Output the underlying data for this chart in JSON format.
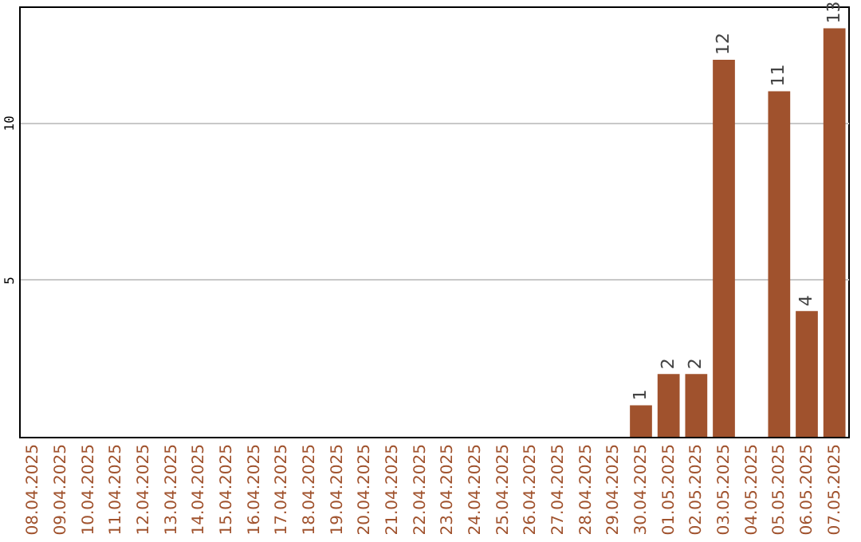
{
  "chart_data": {
    "type": "bar",
    "categories": [
      "08.04.2025",
      "09.04.2025",
      "10.04.2025",
      "11.04.2025",
      "12.04.2025",
      "13.04.2025",
      "14.04.2025",
      "15.04.2025",
      "16.04.2025",
      "17.04.2025",
      "18.04.2025",
      "19.04.2025",
      "20.04.2025",
      "21.04.2025",
      "22.04.2025",
      "23.04.2025",
      "24.04.2025",
      "25.04.2025",
      "26.04.2025",
      "27.04.2025",
      "28.04.2025",
      "29.04.2025",
      "30.04.2025",
      "01.05.2025",
      "02.05.2025",
      "03.05.2025",
      "04.05.2025",
      "05.05.2025",
      "06.05.2025",
      "07.05.2025"
    ],
    "values": [
      0,
      0,
      0,
      0,
      0,
      0,
      0,
      0,
      0,
      0,
      0,
      0,
      0,
      0,
      0,
      0,
      0,
      0,
      0,
      0,
      0,
      0,
      1,
      2,
      2,
      12,
      0,
      11,
      4,
      13
    ],
    "value_labels": [
      null,
      null,
      null,
      null,
      null,
      null,
      null,
      null,
      null,
      null,
      null,
      null,
      null,
      null,
      null,
      null,
      null,
      null,
      null,
      null,
      null,
      null,
      "1",
      "2",
      "2",
      "12",
      null,
      "11",
      "4",
      "13"
    ],
    "color": "#a0522d",
    "ylim": [
      0,
      13.7
    ],
    "yticks": [
      5,
      10
    ],
    "grid": "y"
  }
}
